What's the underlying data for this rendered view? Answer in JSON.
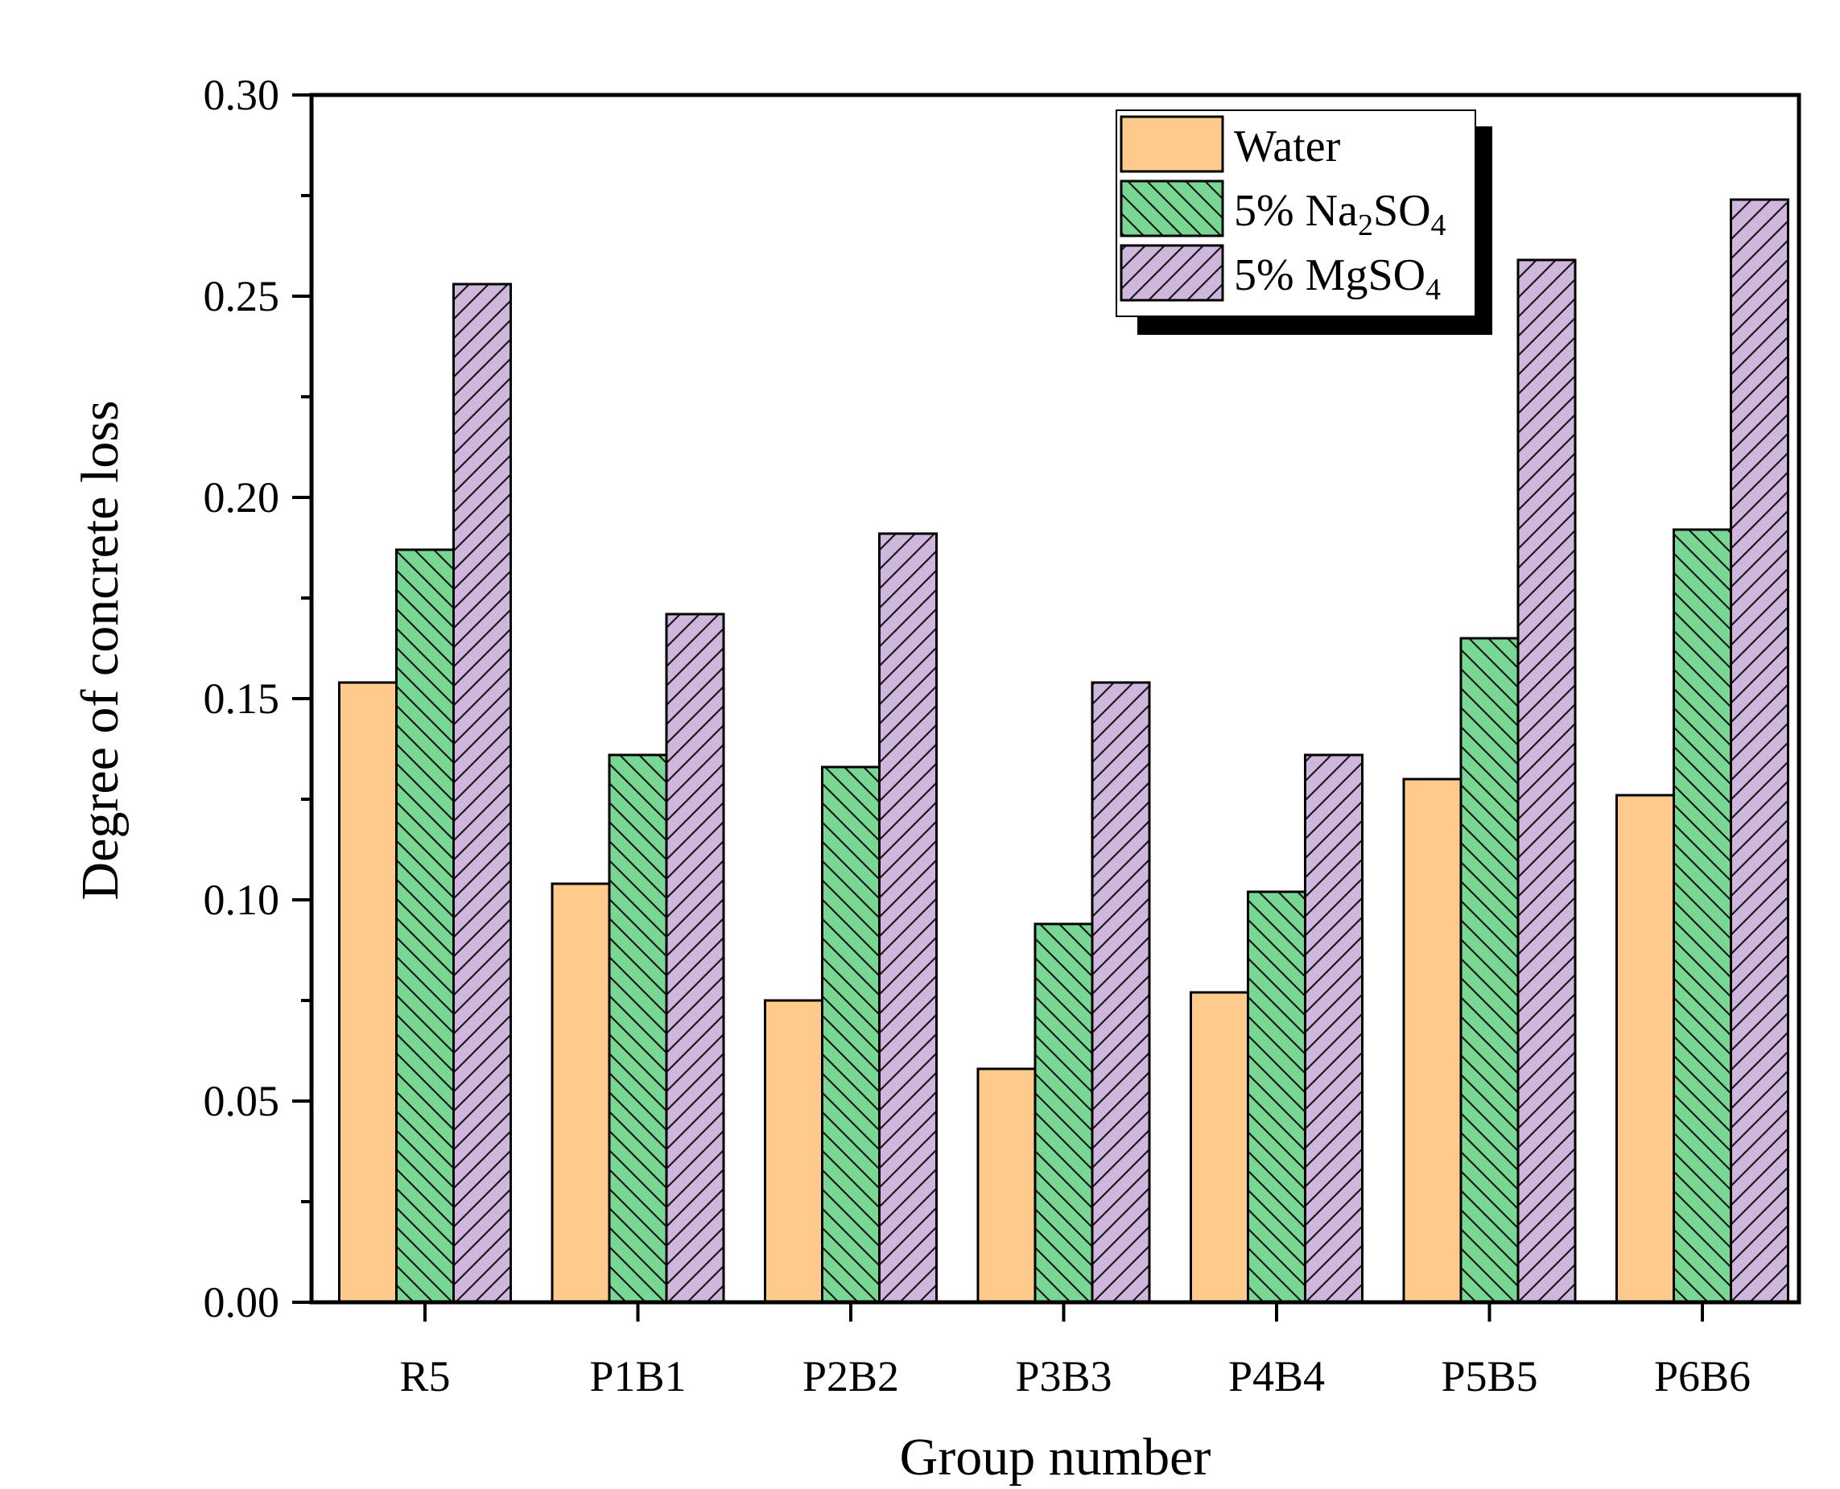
{
  "chart_data": {
    "type": "bar",
    "title": "",
    "xlabel": "Group number",
    "ylabel": "Degree of concrete loss",
    "categories": [
      "R5",
      "P1B1",
      "P2B2",
      "P3B3",
      "P4B4",
      "P5B5",
      "P6B6"
    ],
    "ylim": [
      0,
      0.3
    ],
    "yticks": [
      "0.00",
      "0.05",
      "0.10",
      "0.15",
      "0.20",
      "0.25",
      "0.30"
    ],
    "grid": false,
    "legend_position": "top-right",
    "series": [
      {
        "name": "Water",
        "legend": {
          "prefix": "Water",
          "sub": "",
          "suffix": ""
        },
        "color": "#fecb8c",
        "pattern": "none",
        "values": [
          0.154,
          0.104,
          0.075,
          0.058,
          0.077,
          0.13,
          0.126
        ]
      },
      {
        "name": "5% Na2SO4",
        "legend": {
          "prefix": "5% Na",
          "sub": "2",
          "suffix": "SO",
          "sub2": "4"
        },
        "color": "#79d794",
        "pattern": "backslash",
        "values": [
          0.187,
          0.136,
          0.133,
          0.094,
          0.102,
          0.165,
          0.192
        ]
      },
      {
        "name": "5% MgSO4",
        "legend": {
          "prefix": "5% MgSO",
          "sub": "4",
          "suffix": ""
        },
        "color": "#cfb6dd",
        "pattern": "slash",
        "values": [
          0.253,
          0.171,
          0.191,
          0.154,
          0.136,
          0.259,
          0.274
        ]
      }
    ]
  }
}
